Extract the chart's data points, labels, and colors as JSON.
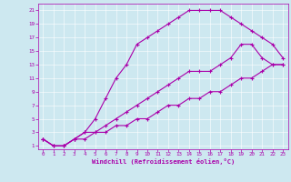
{
  "title": "",
  "xlabel": "Windchill (Refroidissement éolien,°C)",
  "ylabel": "",
  "bg_color": "#cde8f0",
  "line_color": "#aa00aa",
  "marker": "+",
  "xlim": [
    -0.5,
    23.5
  ],
  "ylim": [
    0.5,
    22
  ],
  "xticks": [
    0,
    1,
    2,
    3,
    4,
    5,
    6,
    7,
    8,
    9,
    10,
    11,
    12,
    13,
    14,
    15,
    16,
    17,
    18,
    19,
    20,
    21,
    22,
    23
  ],
  "yticks": [
    1,
    3,
    5,
    7,
    9,
    11,
    13,
    15,
    17,
    19,
    21
  ],
  "curve1_x": [
    0,
    1,
    2,
    3,
    4,
    5,
    6,
    7,
    8,
    9,
    10,
    11,
    12,
    13,
    14,
    15,
    16,
    17,
    18,
    19,
    20,
    21,
    22,
    23
  ],
  "curve1_y": [
    2,
    1,
    1,
    2,
    3,
    5,
    8,
    11,
    13,
    16,
    17,
    18,
    19,
    20,
    21,
    21,
    21,
    21,
    20,
    19,
    18,
    17,
    16,
    14
  ],
  "curve2_x": [
    0,
    1,
    2,
    3,
    4,
    5,
    6,
    7,
    8,
    9,
    10,
    11,
    12,
    13,
    14,
    15,
    16,
    17,
    18,
    19,
    20,
    21,
    22,
    23
  ],
  "curve2_y": [
    2,
    1,
    1,
    2,
    3,
    3,
    4,
    5,
    6,
    7,
    8,
    9,
    10,
    11,
    12,
    12,
    12,
    13,
    14,
    16,
    16,
    14,
    13,
    13
  ],
  "curve3_x": [
    0,
    1,
    2,
    3,
    4,
    5,
    6,
    7,
    8,
    9,
    10,
    11,
    12,
    13,
    14,
    15,
    16,
    17,
    18,
    19,
    20,
    21,
    22,
    23
  ],
  "curve3_y": [
    2,
    1,
    1,
    2,
    2,
    3,
    3,
    4,
    4,
    5,
    5,
    6,
    7,
    7,
    8,
    8,
    9,
    9,
    10,
    11,
    11,
    12,
    13,
    13
  ],
  "grid_color": "#ffffff",
  "tick_labelsize": 4.2,
  "xlabel_fontsize": 5.0,
  "lw": 0.8,
  "ms": 3
}
